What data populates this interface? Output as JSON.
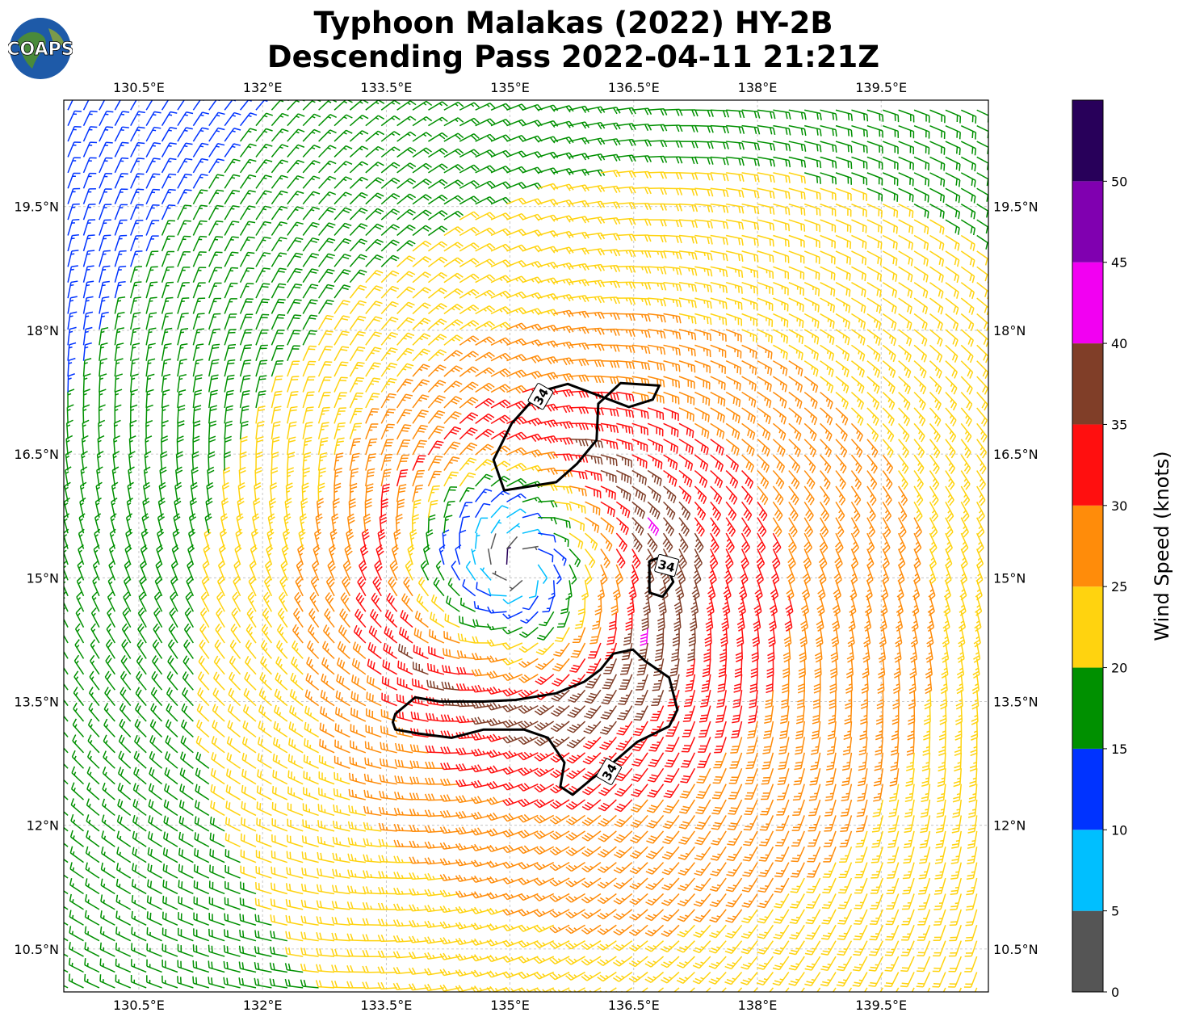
{
  "title": {
    "line1": "Typhoon Malakas (2022) HY-2B",
    "line2": "Descending Pass 2022-04-11 21:21Z"
  },
  "logo": {
    "text": "COAPS"
  },
  "chart_data": {
    "type": "wind-barb-map",
    "title": "Typhoon Malakas (2022) HY-2B Descending Pass 2022-04-11 21:21Z",
    "lon_range": [
      129.59,
      140.8
    ],
    "lat_range": [
      9.98,
      20.79
    ],
    "lon_ticks": [
      130.5,
      132,
      133.5,
      135,
      136.5,
      138,
      139.5
    ],
    "lon_tick_labels": [
      "130.5°E",
      "132°E",
      "133.5°E",
      "135°E",
      "136.5°E",
      "138°E",
      "139.5°E"
    ],
    "lat_ticks": [
      19.5,
      18,
      16.5,
      15,
      13.5,
      12,
      10.5
    ],
    "lat_tick_labels": [
      "19.5°N",
      "18°N",
      "16.5°N",
      "15°N",
      "13.5°N",
      "12°N",
      "10.5°N"
    ],
    "grid": true,
    "storm_center": {
      "lon": 135.1,
      "lat": 15.1
    },
    "contour": {
      "level": 34,
      "label": "34",
      "color": "#000000",
      "polygons": [
        [
          [
            135.37,
            17.26
          ],
          [
            135.02,
            16.87
          ],
          [
            134.8,
            16.43
          ],
          [
            134.93,
            16.06
          ],
          [
            135.56,
            16.16
          ],
          [
            135.81,
            16.38
          ],
          [
            136.05,
            16.67
          ],
          [
            136.07,
            17.11
          ],
          [
            136.34,
            17.36
          ],
          [
            136.81,
            17.33
          ],
          [
            136.73,
            17.16
          ],
          [
            136.44,
            17.07
          ],
          [
            136.1,
            17.2
          ],
          [
            135.7,
            17.35
          ]
        ],
        [
          [
            133.61,
            13.35
          ],
          [
            133.85,
            13.55
          ],
          [
            134.15,
            13.5
          ],
          [
            134.68,
            13.5
          ],
          [
            135.07,
            13.52
          ],
          [
            135.56,
            13.6
          ],
          [
            135.9,
            13.74
          ],
          [
            136.1,
            13.89
          ],
          [
            136.25,
            14.08
          ],
          [
            136.49,
            14.13
          ],
          [
            136.64,
            13.99
          ],
          [
            136.93,
            13.79
          ],
          [
            137.03,
            13.4
          ],
          [
            136.93,
            13.2
          ],
          [
            136.54,
            13.01
          ],
          [
            136.25,
            12.76
          ],
          [
            136.0,
            12.57
          ],
          [
            135.76,
            12.37
          ],
          [
            135.61,
            12.47
          ],
          [
            135.66,
            12.76
          ],
          [
            135.46,
            13.06
          ],
          [
            135.17,
            13.16
          ],
          [
            134.68,
            13.16
          ],
          [
            134.29,
            13.06
          ],
          [
            133.9,
            13.11
          ],
          [
            133.61,
            13.16
          ],
          [
            133.58,
            13.25
          ]
        ],
        [
          [
            136.69,
            15.2
          ],
          [
            136.85,
            15.26
          ],
          [
            136.98,
            14.95
          ],
          [
            136.85,
            14.77
          ],
          [
            136.69,
            14.82
          ]
        ]
      ],
      "label_positions": [
        [
          135.37,
          17.2
        ],
        [
          136.9,
          15.15
        ],
        [
          136.2,
          12.65
        ]
      ]
    },
    "colorbar": {
      "label": "Wind Speed (knots)",
      "ticks": [
        0,
        5,
        10,
        15,
        20,
        25,
        30,
        35,
        40,
        45,
        50
      ],
      "range": [
        0,
        55
      ],
      "bins": [
        {
          "min": 0,
          "max": 5,
          "color": "#555555"
        },
        {
          "min": 5,
          "max": 10,
          "color": "#00bfff"
        },
        {
          "min": 10,
          "max": 15,
          "color": "#0033ff"
        },
        {
          "min": 15,
          "max": 20,
          "color": "#009000"
        },
        {
          "min": 20,
          "max": 25,
          "color": "#ffd30f"
        },
        {
          "min": 25,
          "max": 30,
          "color": "#ff8c0a"
        },
        {
          "min": 30,
          "max": 35,
          "color": "#ff0f0f"
        },
        {
          "min": 35,
          "max": 40,
          "color": "#803e28"
        },
        {
          "min": 40,
          "max": 45,
          "color": "#f200f2"
        },
        {
          "min": 45,
          "max": 50,
          "color": "#8000b0"
        },
        {
          "min": 50,
          "max": 55,
          "color": "#28005a"
        }
      ]
    }
  }
}
